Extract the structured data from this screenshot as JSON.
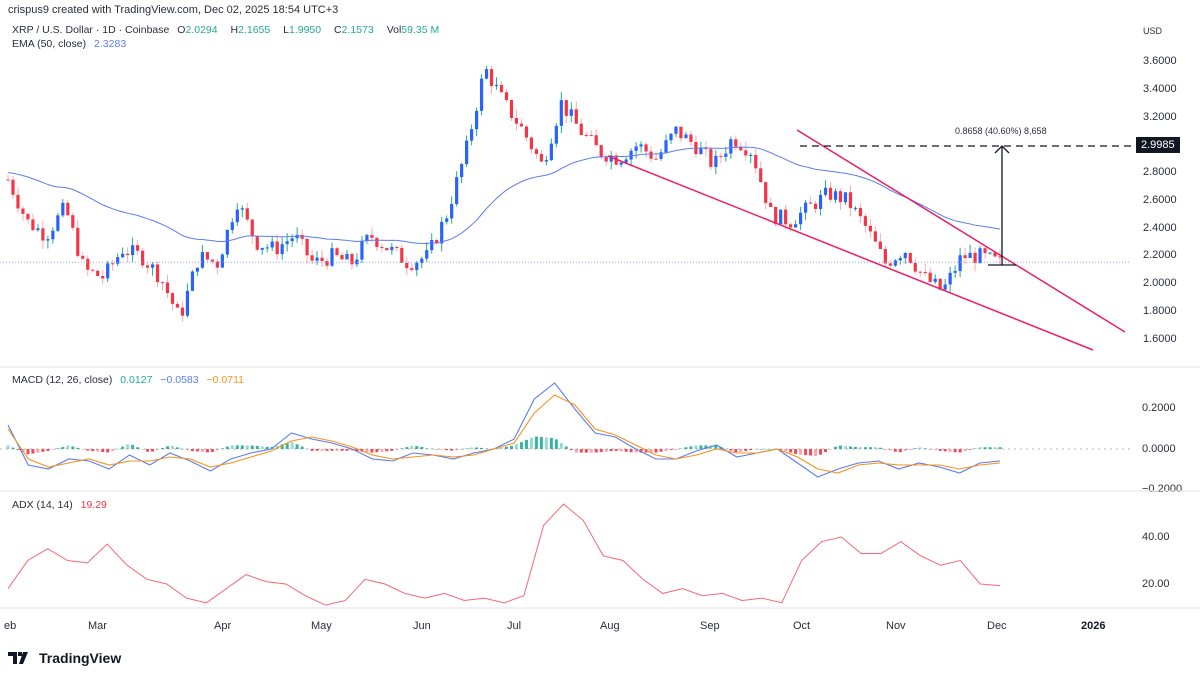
{
  "header": {
    "credit": "crispus9 created with TradingView.com, Dec 02, 2025 18:54 UTC+3",
    "symbol": "XRP / U.S. Dollar · 1D · Coinbase",
    "ohlc": {
      "o_label": "O",
      "o": "2.0294",
      "h_label": "H",
      "h": "2.1655",
      "l_label": "L",
      "l": "1.9950",
      "c_label": "C",
      "c": "2.1573",
      "vol_label": "Vol",
      "vol": "59.35 M"
    },
    "ema": {
      "label": "EMA (50, close)",
      "value": "2.3283"
    }
  },
  "price_axis": {
    "currency": "USD",
    "ticks": [
      "3.6000",
      "3.4000",
      "3.2000",
      "2.8000",
      "2.6000",
      "2.4000",
      "2.2000",
      "2.0000",
      "1.8000",
      "1.6000"
    ],
    "highlight_tag": "2.9985"
  },
  "measure": {
    "label": "0.8658 (40.60%) 8,658"
  },
  "macd": {
    "label": "MACD (12, 26, close)",
    "hist": "0.0127",
    "macd": "−0.0583",
    "signal": "−0.0711",
    "ticks": [
      "0.2000",
      "0.0000",
      "−0.2000"
    ]
  },
  "adx": {
    "label": "ADX (14, 14)",
    "value": "19.29",
    "ticks": [
      "40.00",
      "20.00"
    ]
  },
  "time_axis": {
    "labels": [
      "eb",
      "Mar",
      "Apr",
      "May",
      "Jun",
      "Jul",
      "Aug",
      "Sep",
      "Oct",
      "Nov",
      "Dec",
      "2026"
    ]
  },
  "brand": {
    "name": "TradingView"
  },
  "colors": {
    "up": "#2962ff",
    "up_wick": "#22ab94",
    "down": "#f23645",
    "ema": "#5b7cf0",
    "wedge": "#e91e63",
    "macd": "#5b7cf0",
    "signal": "#f7931a",
    "adx": "#f23645",
    "hist_up": "#22ab94",
    "hist_down": "#f23645"
  },
  "chart_data": [
    {
      "type": "candlestick",
      "title": "XRP / U.S. Dollar · 1D · Coinbase",
      "xlabel": "",
      "ylabel": "USD",
      "ylim": [
        1.5,
        3.75
      ],
      "x": [
        "Feb",
        "Mar",
        "Apr",
        "May",
        "Jun",
        "Jul",
        "Aug",
        "Sep",
        "Oct",
        "Nov",
        "Dec"
      ],
      "close_approx": [
        2.75,
        2.45,
        2.35,
        2.55,
        2.1,
        2.05,
        2.25,
        2.2,
        2.05,
        1.75,
        2.2,
        2.15,
        2.6,
        2.3,
        2.25,
        2.35,
        2.15,
        2.2,
        2.15,
        2.35,
        2.25,
        2.15,
        2.2,
        2.5,
        2.95,
        3.55,
        3.3,
        3.1,
        2.85,
        3.3,
        3.1,
        2.95,
        2.9,
        3.0,
        2.9,
        3.1,
        3.0,
        2.85,
        3.05,
        2.95,
        2.5,
        2.45,
        2.55,
        2.65,
        2.6,
        2.4,
        2.15,
        2.25,
        2.05,
        1.95,
        2.2,
        2.2,
        2.15
      ],
      "series": [
        {
          "name": "EMA (50, close)",
          "last": 2.3283
        },
        {
          "name": "Current price line",
          "value": 2.1573
        },
        {
          "name": "Target (measured move)",
          "value": 2.9985,
          "change": "0.8658 (40.60%)"
        }
      ],
      "annotations": [
        "Falling wedge pattern (two converging pink trendlines)",
        "Arrow from 2.13 up to 2.9985 target"
      ],
      "grid": false
    },
    {
      "type": "line",
      "title": "MACD (12, 26, close)",
      "ylim": [
        -0.2,
        0.35
      ],
      "series": [
        {
          "name": "MACD",
          "last": -0.0583,
          "peak": 0.33
        },
        {
          "name": "Signal",
          "last": -0.0711,
          "peak": 0.27
        },
        {
          "name": "Histogram",
          "last": 0.0127
        }
      ]
    },
    {
      "type": "line",
      "title": "ADX (14, 14)",
      "ylim": [
        10,
        55
      ],
      "series": [
        {
          "name": "ADX",
          "values": [
            18,
            30,
            35,
            30,
            29,
            37,
            28,
            22,
            20,
            14,
            12,
            18,
            24,
            21,
            20,
            15,
            11,
            13,
            22,
            20,
            16,
            14,
            16,
            13,
            14,
            12,
            15,
            45,
            54,
            47,
            32,
            30,
            22,
            16,
            18,
            15,
            16,
            13,
            14,
            12,
            30,
            38,
            40,
            33,
            33,
            38,
            32,
            28,
            30,
            20,
            19.29
          ]
        }
      ]
    }
  ]
}
